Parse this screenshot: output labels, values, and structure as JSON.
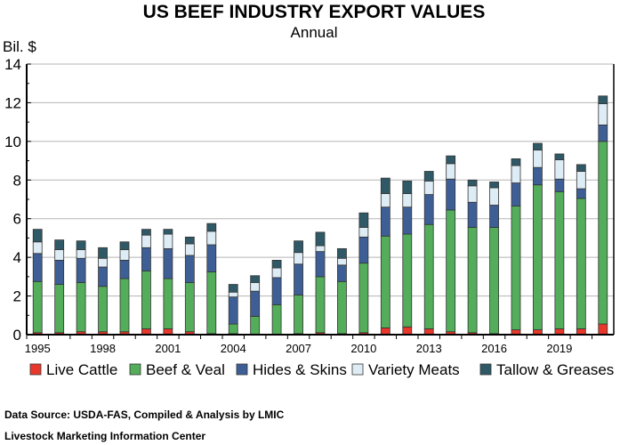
{
  "chart_data": {
    "type": "bar",
    "stacked": true,
    "title": "US BEEF INDUSTRY EXPORT VALUES",
    "subtitle": "Annual",
    "ylabel": "Bil. $",
    "ylim": [
      0,
      14
    ],
    "yticks": [
      0,
      2,
      4,
      6,
      8,
      10,
      12,
      14
    ],
    "grid": true,
    "legend_position": "bottom",
    "categories": [
      1995,
      1996,
      1997,
      1998,
      1999,
      2000,
      2001,
      2002,
      2003,
      2004,
      2005,
      2006,
      2007,
      2008,
      2009,
      2010,
      2011,
      2012,
      2013,
      2014,
      2015,
      2016,
      2017,
      2018,
      2019,
      2020,
      2021
    ],
    "xtick_labels": [
      "1995",
      "1998",
      "2001",
      "2004",
      "2007",
      "2010",
      "2013",
      "2016",
      "2019"
    ],
    "series": [
      {
        "name": "Live Cattle",
        "color": "#e8382c",
        "values": [
          0.1,
          0.1,
          0.15,
          0.15,
          0.15,
          0.3,
          0.3,
          0.15,
          0.05,
          0.05,
          0.0,
          0.0,
          0.05,
          0.1,
          0.05,
          0.1,
          0.35,
          0.4,
          0.3,
          0.15,
          0.1,
          0.05,
          0.25,
          0.25,
          0.3,
          0.3,
          0.55
        ]
      },
      {
        "name": "Beef & Veal",
        "color": "#53ad5a",
        "values": [
          2.65,
          2.5,
          2.55,
          2.35,
          2.75,
          3.0,
          2.6,
          2.55,
          3.2,
          0.5,
          0.95,
          1.55,
          2.0,
          2.9,
          2.7,
          3.6,
          4.75,
          4.8,
          5.4,
          6.3,
          5.45,
          5.5,
          6.4,
          7.5,
          7.1,
          6.75,
          9.45
        ]
      },
      {
        "name": "Hides & Skins",
        "color": "#3e5f96",
        "values": [
          1.45,
          1.25,
          1.25,
          1.0,
          0.95,
          1.2,
          1.55,
          1.4,
          1.4,
          1.4,
          1.3,
          1.4,
          1.6,
          1.3,
          0.85,
          1.35,
          1.5,
          1.4,
          1.55,
          1.6,
          1.3,
          1.15,
          1.2,
          0.9,
          0.65,
          0.5,
          0.85
        ]
      },
      {
        "name": "Variety Meats",
        "color": "#deedf5",
        "values": [
          0.6,
          0.55,
          0.45,
          0.45,
          0.55,
          0.65,
          0.75,
          0.6,
          0.7,
          0.25,
          0.45,
          0.5,
          0.6,
          0.3,
          0.35,
          0.5,
          0.7,
          0.7,
          0.7,
          0.8,
          0.85,
          0.9,
          0.9,
          0.9,
          1.0,
          0.9,
          1.1
        ]
      },
      {
        "name": "Tallow & Greases",
        "color": "#2f5967",
        "values": [
          0.65,
          0.5,
          0.45,
          0.55,
          0.4,
          0.3,
          0.25,
          0.35,
          0.4,
          0.4,
          0.35,
          0.4,
          0.6,
          0.7,
          0.5,
          0.75,
          0.8,
          0.65,
          0.5,
          0.4,
          0.3,
          0.3,
          0.35,
          0.35,
          0.3,
          0.35,
          0.4
        ]
      }
    ]
  },
  "footer": {
    "source": "Data Source:  USDA-FAS, Compiled & Analysis by LMIC",
    "org": "Livestock Marketing Information Center"
  }
}
